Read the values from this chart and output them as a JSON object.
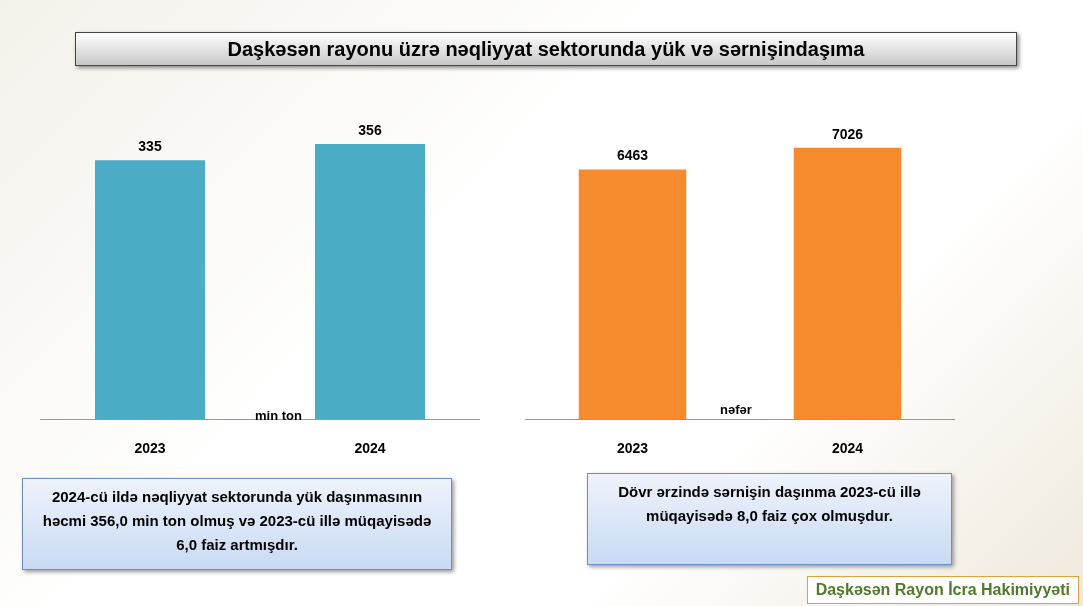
{
  "chart_data": [
    {
      "type": "bar",
      "title": "Daşkəsən rayonu üzrə nəqliyyat sektorunda yük və sərnişindaşıma",
      "categories": [
        "2023",
        "2024"
      ],
      "values": [
        335,
        356
      ],
      "color": "#4bacc6",
      "tick_labels": "x",
      "data_labels": true,
      "grid": false,
      "legend": false,
      "annotations": [
        "min ton",
        "2024-cü ildə nəqliyyat sektorunda yük daşınmasının həcmi 356,0 min ton olmuş və 2023-cü illə müqayisədə 6,0 faiz artmışdır."
      ]
    },
    {
      "type": "bar",
      "categories": [
        "2023",
        "2024"
      ],
      "values": [
        6463,
        7026
      ],
      "color": "#f58b2d",
      "tick_labels": "x",
      "data_labels": true,
      "grid": false,
      "legend": false,
      "annotations": [
        "nəfər",
        "Dövr ərzində sərnişin daşınma 2023-cü illə müqayisədə 8,0 faiz çox olmuşdur.",
        "Daşkəsən Rayon İcra Hakimiyyəti"
      ]
    }
  ]
}
